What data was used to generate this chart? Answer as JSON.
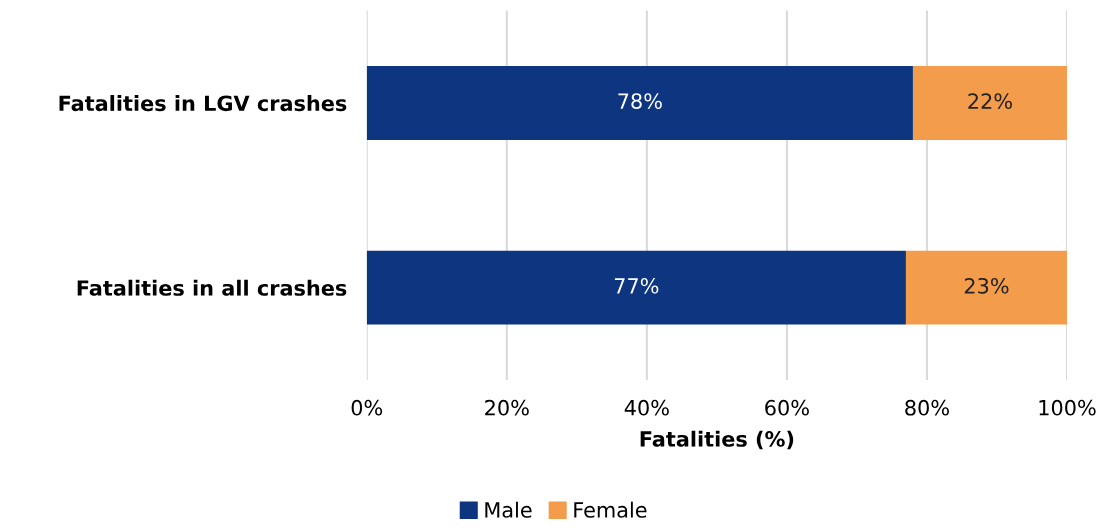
{
  "chart_data": {
    "type": "bar",
    "orientation": "horizontal",
    "stacked": true,
    "categories": [
      "Fatalities in LGV crashes",
      "Fatalities in all crashes"
    ],
    "series": [
      {
        "name": "Male",
        "color": "#0d3580",
        "values": [
          78,
          77
        ],
        "value_labels": [
          "78%",
          "77%"
        ]
      },
      {
        "name": "Female",
        "color": "#f39c4b",
        "values": [
          22,
          23
        ],
        "value_labels": [
          "22%",
          "23%"
        ]
      }
    ],
    "xlabel": "Fatalities (%)",
    "xlim": [
      0,
      100
    ],
    "xticks": [
      {
        "value": 0,
        "label": "0%"
      },
      {
        "value": 20,
        "label": "20%"
      },
      {
        "value": 40,
        "label": "40%"
      },
      {
        "value": 60,
        "label": "60%"
      },
      {
        "value": 80,
        "label": "80%"
      },
      {
        "value": 100,
        "label": "100%"
      }
    ],
    "grid": "x",
    "legend": "bottom"
  }
}
